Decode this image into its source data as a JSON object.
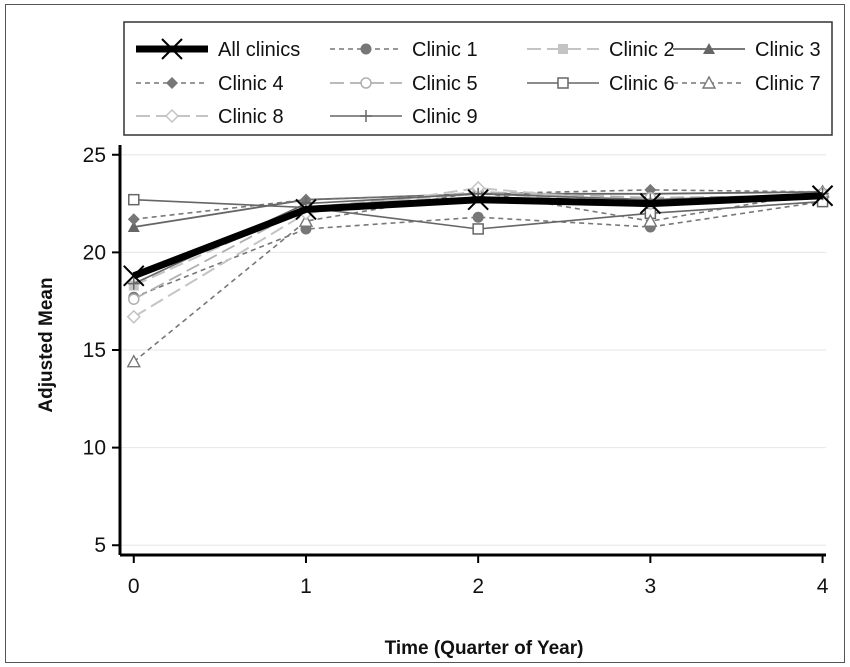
{
  "chart_data": {
    "type": "line",
    "title": "",
    "xlabel": "Time (Quarter of Year)",
    "ylabel": "Adjusted Mean",
    "x": [
      0,
      1,
      2,
      3,
      4
    ],
    "xlim": [
      -0.08,
      4.02
    ],
    "ylim": [
      4.5,
      25.5
    ],
    "yticks": [
      5,
      10,
      15,
      20,
      25
    ],
    "xticks": [
      0,
      1,
      2,
      3,
      4
    ],
    "grid": "horizontal",
    "legend_position": "top",
    "series": [
      {
        "name": "All clinics",
        "values": [
          18.8,
          22.2,
          22.7,
          22.5,
          22.9
        ],
        "color": "#000000",
        "dash": "solid",
        "marker": "x",
        "width": 7
      },
      {
        "name": "Clinic 1",
        "values": [
          17.7,
          21.2,
          21.8,
          21.3,
          22.6
        ],
        "color": "#777777",
        "dash": "dash",
        "marker": "circle-filled",
        "width": 1.6
      },
      {
        "name": "Clinic 2",
        "values": [
          18.3,
          22.3,
          23.0,
          22.6,
          23.0
        ],
        "color": "#c4c4c4",
        "dash": "longdash",
        "marker": "square-filled",
        "width": 2
      },
      {
        "name": "Clinic 3",
        "values": [
          21.3,
          22.7,
          23.0,
          23.0,
          23.1
        ],
        "color": "#666666",
        "dash": "solid",
        "marker": "triangle-filled",
        "width": 1.8
      },
      {
        "name": "Clinic 4",
        "values": [
          21.7,
          22.7,
          23.0,
          23.2,
          23.1
        ],
        "color": "#777777",
        "dash": "dash",
        "marker": "diamond-filled",
        "width": 1.6
      },
      {
        "name": "Clinic 5",
        "values": [
          17.6,
          22.3,
          23.1,
          22.8,
          22.9
        ],
        "color": "#b0b0b0",
        "dash": "longdash",
        "marker": "circle-open",
        "width": 1.8
      },
      {
        "name": "Clinic 6",
        "values": [
          22.7,
          22.3,
          21.2,
          22.0,
          22.6
        ],
        "color": "#666666",
        "dash": "solid",
        "marker": "square-open",
        "width": 1.6
      },
      {
        "name": "Clinic 7",
        "values": [
          14.4,
          21.6,
          23.1,
          21.6,
          23.1
        ],
        "color": "#777777",
        "dash": "dash",
        "marker": "triangle-open",
        "width": 1.6
      },
      {
        "name": "Clinic 8",
        "values": [
          16.7,
          22.0,
          23.3,
          22.5,
          23.0
        ],
        "color": "#c4c4c4",
        "dash": "longdash",
        "marker": "diamond-open",
        "width": 2
      },
      {
        "name": "Clinic 9",
        "values": [
          18.4,
          22.5,
          23.0,
          22.7,
          23.0
        ],
        "color": "#666666",
        "dash": "solid",
        "marker": "plus",
        "width": 1.6
      }
    ]
  }
}
